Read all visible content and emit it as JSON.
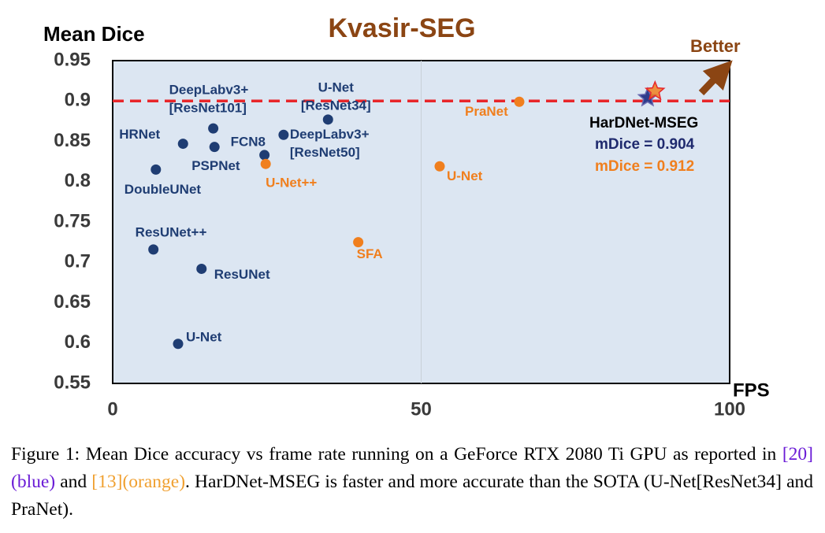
{
  "chart_data": {
    "type": "scatter",
    "title": "Kvasir-SEG",
    "ylabel": "Mean Dice",
    "xlabel": "FPS",
    "xlim": [
      0,
      100
    ],
    "xticks": [
      0,
      50,
      100
    ],
    "ylim": [
      0.55,
      0.95
    ],
    "yticks": [
      0.55,
      0.6,
      0.65,
      0.7,
      0.75,
      0.8,
      0.85,
      0.9,
      0.95
    ],
    "grid": "x",
    "background": "#dce6f2",
    "reference_line": {
      "value": 0.9,
      "color": "#e8262a",
      "dashed": true
    },
    "series": [
      {
        "color": "#1f3d73",
        "marker": "circle",
        "x": [
          16.3,
          11.4,
          16.5,
          24.6,
          27.7,
          34.9,
          7.0,
          6.6,
          14.4,
          10.6
        ],
        "values": [
          0.866,
          0.847,
          0.843,
          0.833,
          0.858,
          0.877,
          0.815,
          0.716,
          0.692,
          0.599
        ],
        "labels": [
          [
            "DeepLabv3+",
            "[ResNet101]"
          ],
          [
            "HRNet"
          ],
          [
            "PSPNet"
          ],
          [
            "FCN8"
          ],
          [
            "DeepLabv3+",
            "[ResNet50]"
          ],
          [
            "U-Net",
            "[ResNet34]"
          ],
          [
            "DoubleUNet"
          ],
          [
            "ResUNet++"
          ],
          [
            "ResUNet"
          ],
          [
            "U-Net"
          ]
        ]
      },
      {
        "color": "#f07f1e",
        "marker": "circle",
        "x": [
          24.8,
          39.8,
          53.0,
          65.9
        ],
        "values": [
          0.822,
          0.725,
          0.819,
          0.899
        ],
        "labels": [
          [
            "U-Net++"
          ],
          [
            "SFA"
          ],
          [
            "U-Net"
          ],
          [
            "PraNet"
          ]
        ]
      },
      {
        "color": "#2e3c8c",
        "marker": "star",
        "x": [
          86.7
        ],
        "values": [
          0.904
        ]
      },
      {
        "color": "#f07f1e",
        "marker": "star",
        "x": [
          87.9
        ],
        "values": [
          0.912
        ]
      }
    ],
    "annotations": [
      {
        "text": "HarDNet-MSEG",
        "color": "#000000"
      },
      {
        "text": "mDice = 0.904",
        "color": "#1f2a6e"
      },
      {
        "text": "mDice = 0.912",
        "color": "#f07f1e"
      },
      {
        "text": "Better",
        "color": "#8b4513"
      }
    ]
  },
  "caption": {
    "segments": [
      "Figure 1: Mean Dice accuracy vs frame rate running on a GeForce RTX 2080 Ti GPU as reported in ",
      "[20](blue)",
      " and ",
      "[13](orange)",
      ". HarDNet-MSEG is faster and more accurate than the SOTA (U-Net[ResNet34] and PraNet)."
    ]
  }
}
